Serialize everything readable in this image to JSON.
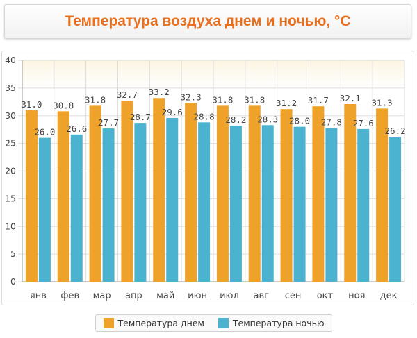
{
  "title": "Температура воздуха днем и ночью, °C",
  "colors": {
    "day": "#eea229",
    "night": "#4bb3cf",
    "plot_bg_top": "#fdf5e3",
    "grid": "#dddddd"
  },
  "chart_data": {
    "type": "bar",
    "categories": [
      "янв",
      "фев",
      "мар",
      "апр",
      "май",
      "июн",
      "июл",
      "авг",
      "сен",
      "окт",
      "ноя",
      "дек"
    ],
    "series": [
      {
        "name": "Температура днем",
        "values": [
          31.0,
          30.8,
          31.8,
          32.7,
          33.2,
          32.3,
          31.8,
          31.8,
          31.2,
          31.7,
          32.1,
          31.3
        ]
      },
      {
        "name": "Температура ночью",
        "values": [
          26.0,
          26.6,
          27.7,
          28.7,
          29.6,
          28.8,
          28.2,
          28.3,
          28.0,
          27.8,
          27.6,
          26.2
        ]
      }
    ],
    "yticks": [
      0,
      5,
      10,
      15,
      20,
      25,
      30,
      35,
      40
    ],
    "ylim": [
      0,
      40
    ],
    "grid": true,
    "legend_position": "bottom"
  }
}
